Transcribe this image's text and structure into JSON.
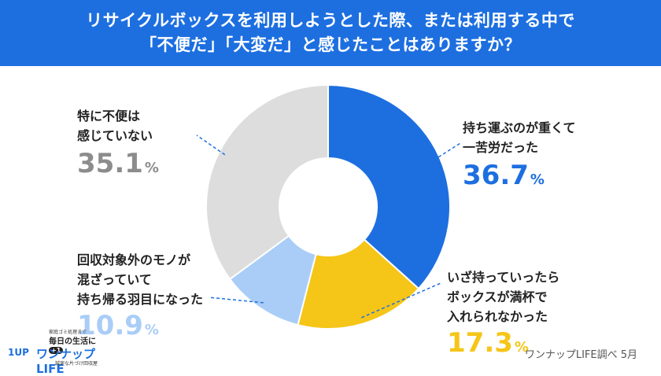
{
  "header": {
    "line1": "リサイクルボックスを利用しようとした際、または利用する中で",
    "line2": "「不便だ」「大変だ」と感じたことはありますか？"
  },
  "chart_data": {
    "type": "pie",
    "donut": true,
    "title": "リサイクルボックスを利用しようとした際、または利用する中で「不便だ」「大変だ」と感じたことはありますか？",
    "unit": "%",
    "slices": [
      {
        "label": "持ち運ぶのが重くて一苦労だった",
        "value": 36.7,
        "color": "#1d6fe0"
      },
      {
        "label": "いざ持っていったらボックスが満杯で入れられなかった",
        "value": 17.3,
        "color": "#f5c518"
      },
      {
        "label": "回収対象外のモノが混ざっていて持ち帰る羽目になった",
        "value": 10.9,
        "color": "#a9cdf7"
      },
      {
        "label": "特に不便は感じていない",
        "value": 35.1,
        "color": "#dddddd"
      }
    ]
  },
  "labels": {
    "s0": {
      "line1": "持ち運ぶのが重くて",
      "line2": "一苦労だった",
      "value": "36.7",
      "unit": "%"
    },
    "s1": {
      "line1": "いざ持っていったら",
      "line2": "ボックスが満杯で",
      "line3": "入れられなかった",
      "value": "17.3",
      "unit": "%"
    },
    "s2": {
      "line1": "回収対象外のモノが",
      "line2": "混ざっていて",
      "line3": "持ち帰る羽目になった",
      "value": "10.9",
      "unit": "%"
    },
    "s3": {
      "line1": "特に不便は",
      "line2": "感じていない",
      "value": "35.1",
      "unit": "%"
    }
  },
  "colors": {
    "header_bg": "#1d6fe0",
    "value_s0": "#1d6fe0",
    "value_s1": "#f5c518",
    "value_s2": "#a9cdf7",
    "value_s3": "#8c8c8c",
    "leader": "#1d6fe0"
  },
  "credit": "ワンナップLIFE調べ 5月",
  "logo": {
    "tagline": "家庭ゴミ処理まで",
    "sub": "毎日の生活に",
    "badge": "+1",
    "brand": "ワンナップLIFE",
    "slogan": "誠実な片づけ回収屋",
    "up": "1UP"
  }
}
